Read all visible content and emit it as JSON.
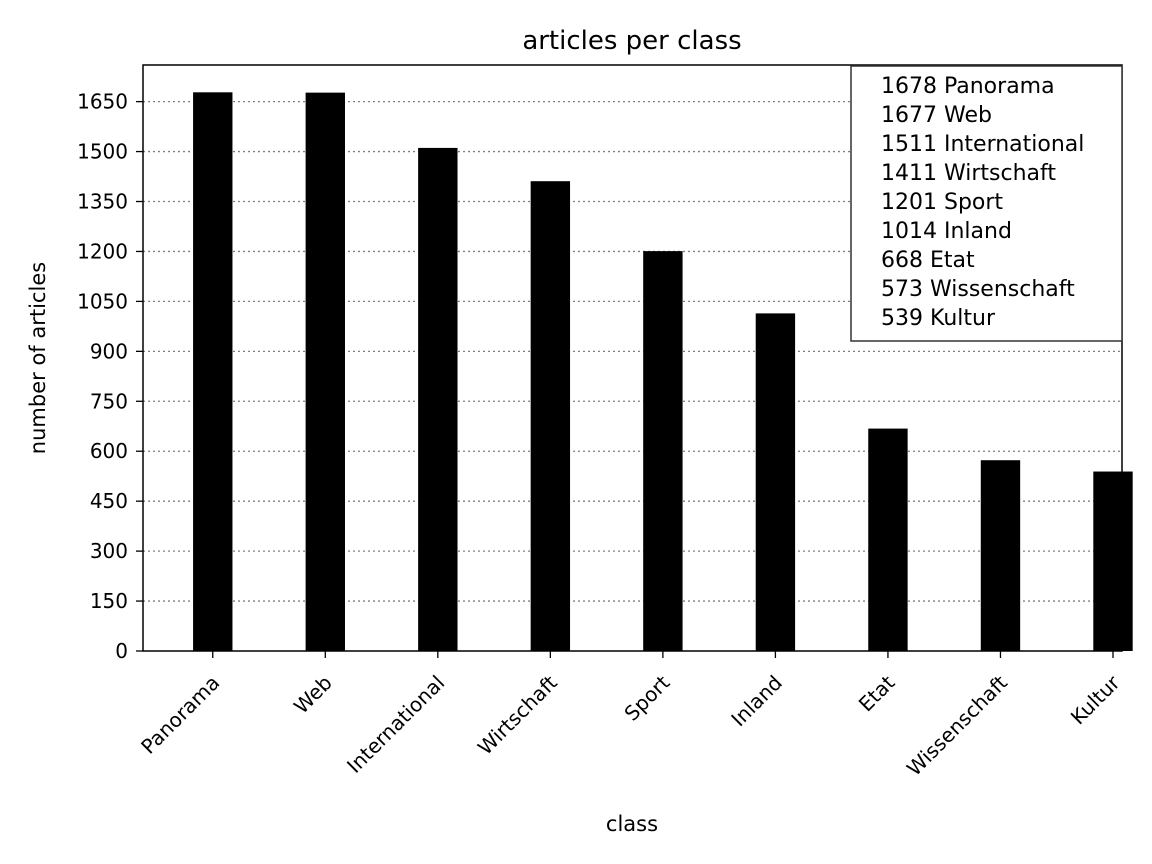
{
  "chart_data": {
    "type": "bar",
    "title": "articles per class",
    "xlabel": "class",
    "ylabel": "number of articles",
    "categories": [
      "Panorama",
      "Web",
      "International",
      "Wirtschaft",
      "Sport",
      "Inland",
      "Etat",
      "Wissenschaft",
      "Kultur"
    ],
    "values": [
      1678,
      1677,
      1511,
      1411,
      1201,
      1014,
      668,
      573,
      539
    ],
    "ylim": [
      0,
      1760
    ],
    "yticks": [
      0,
      150,
      300,
      450,
      600,
      750,
      900,
      1050,
      1200,
      1350,
      1500,
      1650
    ],
    "grid": true,
    "grid_axis": "y",
    "legend_position": "top-right",
    "legend": [
      "1678 Panorama",
      "1677 Web",
      "1511 International",
      "1411 Wirtschaft",
      "1201 Sport",
      "1014 Inland",
      "668 Etat",
      "573 Wissenschaft",
      "539 Kultur"
    ],
    "bar_color": "#000000"
  }
}
